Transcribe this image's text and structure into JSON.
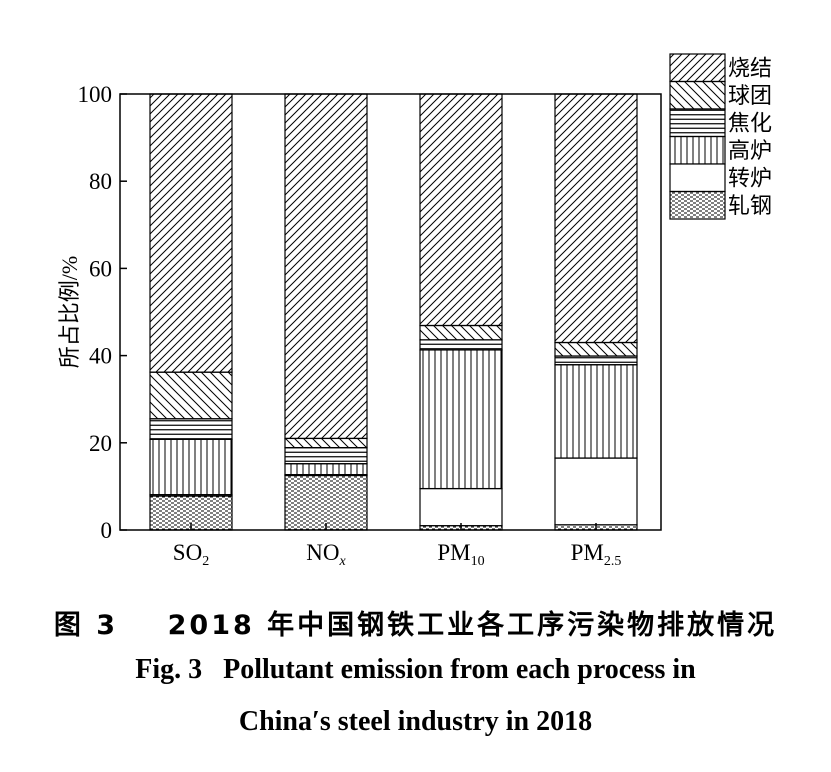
{
  "chart_data": {
    "type": "bar",
    "stacked": true,
    "categories": [
      "SO2",
      "NOx",
      "PM10",
      "PM2.5"
    ],
    "category_labels": [
      {
        "main": "SO",
        "sub": "2",
        "sub_italic": false
      },
      {
        "main": "NO",
        "sub": "x",
        "sub_italic": true
      },
      {
        "main": "PM",
        "sub": "10",
        "sub_italic": false
      },
      {
        "main": "PM",
        "sub": "2.5",
        "sub_italic": false
      }
    ],
    "series": [
      {
        "name": "轧钢",
        "pattern": "dense-dash",
        "values": [
          7.8,
          12.5,
          1.0,
          1.2
        ]
      },
      {
        "name": "转炉",
        "pattern": "empty",
        "values": [
          0.3,
          0.2,
          8.5,
          15.3
        ]
      },
      {
        "name": "高炉",
        "pattern": "vertical",
        "values": [
          12.7,
          2.5,
          31.8,
          21.4
        ]
      },
      {
        "name": "焦化",
        "pattern": "horizontal",
        "values": [
          4.7,
          3.7,
          2.3,
          2.0
        ]
      },
      {
        "name": "球团",
        "pattern": "backslash",
        "values": [
          10.7,
          2.1,
          3.3,
          3.1
        ]
      },
      {
        "name": "烧结",
        "pattern": "slash",
        "values": [
          63.8,
          79.0,
          53.1,
          57.0
        ]
      }
    ],
    "legend_order": [
      "烧结",
      "球团",
      "焦化",
      "高炉",
      "转炉",
      "轧钢"
    ],
    "ylabel": "所占比例/%",
    "xlabel": "",
    "ylim": [
      0,
      100
    ],
    "yticks": [
      0,
      20,
      40,
      60,
      80,
      100
    ],
    "legend_position": "top-right",
    "grid": false
  },
  "caption": {
    "zh_label": "图 3",
    "zh_text": "2018 年中国钢铁工业各工序污染物排放情况",
    "en_label": "Fig. 3",
    "en_line1": "Pollutant emission from each process in",
    "en_line2": "China′s steel industry in 2018"
  }
}
